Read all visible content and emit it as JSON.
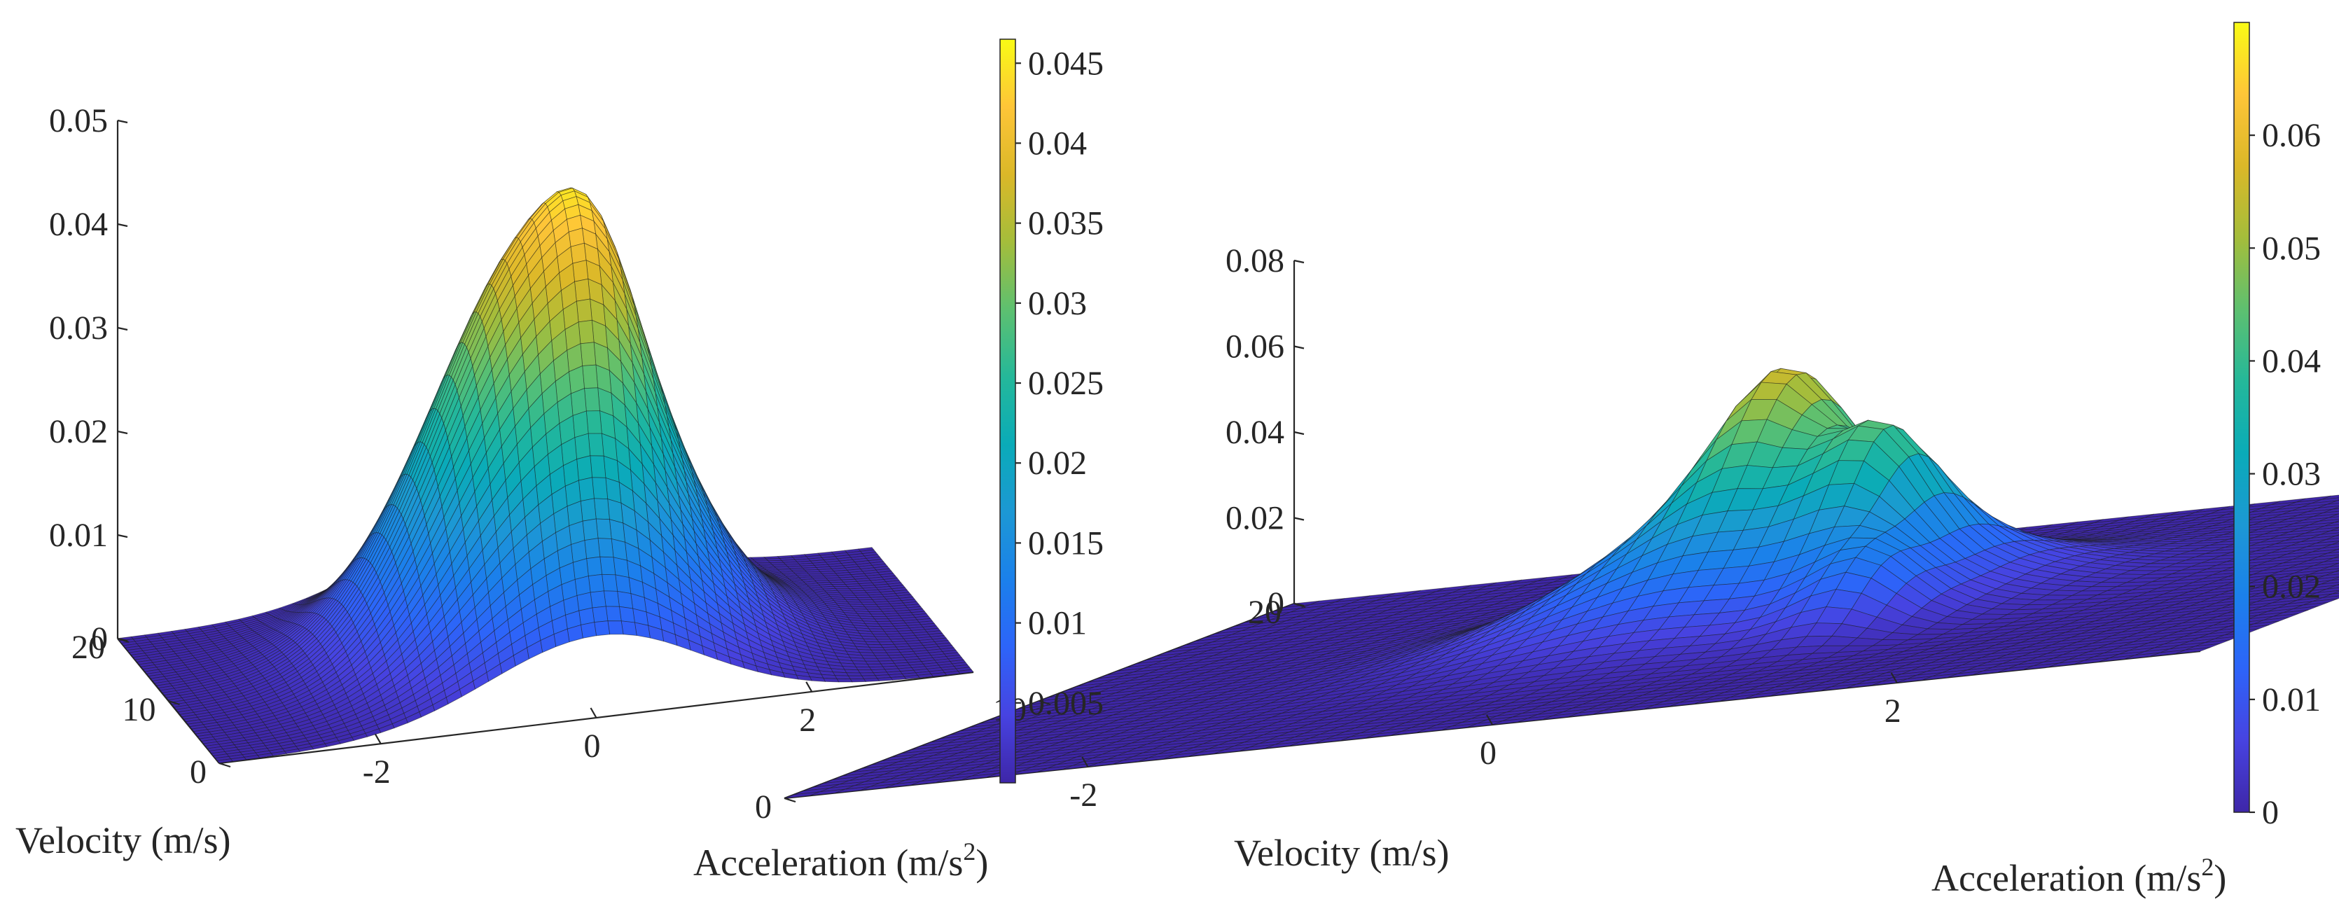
{
  "colormap": [
    "#3e26a8",
    "#4743e1",
    "#2d64f9",
    "#1b80eb",
    "#1c98d4",
    "#0aabb8",
    "#24b89a",
    "#5dc070",
    "#a4bd3b",
    "#dbb828",
    "#fec538",
    "#f9fb15"
  ],
  "chart_data": [
    {
      "type": "surface",
      "title": "",
      "xlabel": "Acceleration (m/s",
      "xlabel_sup": "2",
      "xlabel_close": ")",
      "ylabel": "Velocity (m/s)",
      "zlabel": "",
      "xlim": [
        -3.5,
        3.5
      ],
      "ylim": [
        0,
        20
      ],
      "zlim": [
        0,
        0.05
      ],
      "x_ticks": [
        "-2",
        "0",
        "2"
      ],
      "y_ticks": [
        "0",
        "10",
        "20"
      ],
      "z_ticks": [
        "0",
        "0.01",
        "0.02",
        "0.03",
        "0.04",
        "0.05"
      ],
      "colorbar": {
        "range": [
          0,
          0.0465
        ],
        "ticks": [
          "0.005",
          "0.01",
          "0.015",
          "0.02",
          "0.025",
          "0.03",
          "0.035",
          "0.04",
          "0.045"
        ]
      },
      "peak": {
        "acceleration": 0.0,
        "velocity": 10.0,
        "value": 0.045
      },
      "components": [
        {
          "x0": 0.0,
          "y0": 10.0,
          "sx": 1.0,
          "sy": 5.5,
          "amp": 0.041
        },
        {
          "x0": 0.45,
          "y0": 9.5,
          "sx": 0.35,
          "sy": 3.5,
          "amp": 0.006
        }
      ]
    },
    {
      "type": "surface",
      "title": "",
      "xlabel": "Acceleration (m/s",
      "xlabel_sup": "2",
      "xlabel_close": ")",
      "ylabel": "Velocity (m/s)",
      "zlabel": "",
      "xlim": [
        -3.5,
        3.5
      ],
      "ylim": [
        0,
        20
      ],
      "zlim": [
        0,
        0.08
      ],
      "x_ticks": [
        "-2",
        "0",
        "2"
      ],
      "y_ticks": [
        "0",
        "10",
        "20"
      ],
      "z_ticks": [
        "0",
        "0.02",
        "0.04",
        "0.06",
        "0.08"
      ],
      "colorbar": {
        "range": [
          0,
          0.07
        ],
        "ticks": [
          "0",
          "0.01",
          "0.02",
          "0.03",
          "0.04",
          "0.05",
          "0.06"
        ]
      },
      "peak": {
        "acceleration": 0.0,
        "velocity": 12.0,
        "value": 0.065
      },
      "components": [
        {
          "x0": 0.0,
          "y0": 11.0,
          "sx": 0.75,
          "sy": 2.6,
          "amp": 0.032
        },
        {
          "x0": -0.1,
          "y0": 12.5,
          "sx": 0.25,
          "sy": 1.6,
          "amp": 0.028
        },
        {
          "x0": 0.6,
          "y0": 10.5,
          "sx": 0.22,
          "sy": 1.3,
          "amp": 0.02
        },
        {
          "x0": -0.5,
          "y0": 15.5,
          "sx": 0.2,
          "sy": 1.3,
          "amp": 0.03
        },
        {
          "x0": -1.2,
          "y0": 17.5,
          "sx": 0.15,
          "sy": 0.9,
          "amp": 0.02
        },
        {
          "x0": 0.9,
          "y0": 7.5,
          "sx": 0.22,
          "sy": 1.2,
          "amp": 0.012
        }
      ]
    }
  ]
}
